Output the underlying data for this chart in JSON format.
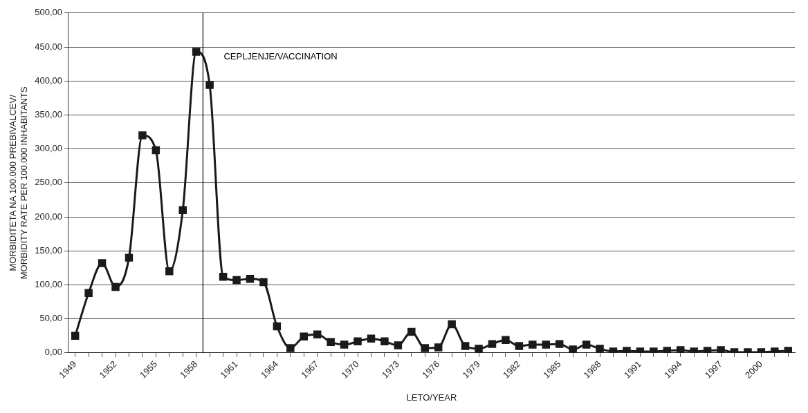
{
  "chart_data": {
    "type": "line",
    "xlabel": "LETO/YEAR",
    "ylabel": "MORBIDITETA NA 100.000 PREBIVALCEV/\nMORBIDITY RATE PER 100.000 INHABITANTS",
    "x": [
      1949,
      1950,
      1951,
      1952,
      1953,
      1954,
      1955,
      1956,
      1957,
      1958,
      1959,
      1960,
      1961,
      1962,
      1963,
      1964,
      1965,
      1966,
      1967,
      1968,
      1969,
      1970,
      1971,
      1972,
      1973,
      1974,
      1975,
      1976,
      1977,
      1978,
      1979,
      1980,
      1981,
      1982,
      1983,
      1984,
      1985,
      1986,
      1987,
      1988,
      1989,
      1990,
      1991,
      1992,
      1993,
      1994,
      1995,
      1996,
      1997,
      1998,
      1999,
      2000,
      2001,
      2002
    ],
    "series": [
      {
        "color": "#1a1a1a",
        "values": [
          25,
          88,
          132,
          97,
          140,
          320,
          298,
          120,
          210,
          443,
          394,
          112,
          107,
          109,
          104,
          39,
          7,
          24,
          27,
          16,
          12,
          17,
          21,
          17,
          11,
          31,
          7,
          8,
          42,
          10,
          6,
          13,
          19,
          10,
          12,
          12,
          13,
          5,
          12,
          6,
          2,
          3,
          2,
          2,
          3,
          4,
          2,
          3,
          4,
          1,
          1,
          1,
          2,
          3
        ]
      }
    ],
    "xlim": [
      1948.5,
      2002.5
    ],
    "xticks": [
      {
        "value": 1949,
        "label": "1949"
      },
      {
        "value": 1950,
        "label": null
      },
      {
        "value": 1951,
        "label": null
      },
      {
        "value": 1952,
        "label": "1952"
      },
      {
        "value": 1953,
        "label": null
      },
      {
        "value": 1954,
        "label": null
      },
      {
        "value": 1955,
        "label": "1955"
      },
      {
        "value": 1956,
        "label": null
      },
      {
        "value": 1957,
        "label": null
      },
      {
        "value": 1958,
        "label": "1958"
      },
      {
        "value": 1959,
        "label": null
      },
      {
        "value": 1960,
        "label": null
      },
      {
        "value": 1961,
        "label": "1961"
      },
      {
        "value": 1962,
        "label": null
      },
      {
        "value": 1963,
        "label": null
      },
      {
        "value": 1964,
        "label": "1964"
      },
      {
        "value": 1965,
        "label": null
      },
      {
        "value": 1966,
        "label": null
      },
      {
        "value": 1967,
        "label": "1967"
      },
      {
        "value": 1968,
        "label": null
      },
      {
        "value": 1969,
        "label": null
      },
      {
        "value": 1970,
        "label": "1970"
      },
      {
        "value": 1971,
        "label": null
      },
      {
        "value": 1972,
        "label": null
      },
      {
        "value": 1973,
        "label": "1973"
      },
      {
        "value": 1974,
        "label": null
      },
      {
        "value": 1975,
        "label": null
      },
      {
        "value": 1976,
        "label": "1976"
      },
      {
        "value": 1977,
        "label": null
      },
      {
        "value": 1978,
        "label": null
      },
      {
        "value": 1979,
        "label": "1979"
      },
      {
        "value": 1980,
        "label": null
      },
      {
        "value": 1981,
        "label": null
      },
      {
        "value": 1982,
        "label": "1982"
      },
      {
        "value": 1983,
        "label": null
      },
      {
        "value": 1984,
        "label": null
      },
      {
        "value": 1985,
        "label": "1985"
      },
      {
        "value": 1986,
        "label": null
      },
      {
        "value": 1987,
        "label": null
      },
      {
        "value": 1988,
        "label": "1988"
      },
      {
        "value": 1989,
        "label": null
      },
      {
        "value": 1990,
        "label": null
      },
      {
        "value": 1991,
        "label": "1991"
      },
      {
        "value": 1992,
        "label": null
      },
      {
        "value": 1993,
        "label": null
      },
      {
        "value": 1994,
        "label": "1994"
      },
      {
        "value": 1995,
        "label": null
      },
      {
        "value": 1996,
        "label": null
      },
      {
        "value": 1997,
        "label": "1997"
      },
      {
        "value": 1998,
        "label": null
      },
      {
        "value": 1999,
        "label": null
      },
      {
        "value": 2000,
        "label": "2000"
      },
      {
        "value": 2001,
        "label": null
      },
      {
        "value": 2002,
        "label": null
      }
    ],
    "ylim": [
      0,
      500
    ],
    "yticks": [
      {
        "value": 0,
        "label": "0,00"
      },
      {
        "value": 50,
        "label": "50,00"
      },
      {
        "value": 100,
        "label": "100,00"
      },
      {
        "value": 150,
        "label": "150,00"
      },
      {
        "value": 200,
        "label": "200,00"
      },
      {
        "value": 250,
        "label": "250,00"
      },
      {
        "value": 300,
        "label": "300,00"
      },
      {
        "value": 350,
        "label": "350,00"
      },
      {
        "value": 400,
        "label": "400,00"
      },
      {
        "value": 450,
        "label": "450,00"
      },
      {
        "value": 500,
        "label": "500,00"
      }
    ],
    "ref_lines": [
      {
        "axis": "x",
        "value": 1958.5,
        "label": "CEPLJENJE/VACCINATION",
        "color": "#000000"
      }
    ],
    "grid": "y",
    "legend": false,
    "marker": "square",
    "line_style": "solid"
  }
}
